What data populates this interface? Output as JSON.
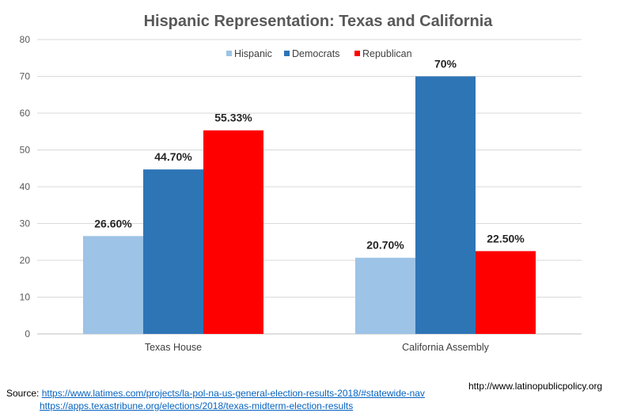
{
  "chart_data": {
    "type": "bar",
    "title": "Hispanic Representation: Texas and California",
    "xlabel": "",
    "ylabel": "",
    "categories": [
      "Texas House",
      "California Assembly"
    ],
    "series": [
      {
        "name": "Hispanic",
        "values": [
          26.6,
          20.7
        ],
        "labels": [
          "26.60%",
          "20.70%"
        ],
        "color": "#9dc3e6"
      },
      {
        "name": "Democrats",
        "values": [
          44.7,
          70
        ],
        "labels": [
          "44.70%",
          "70%"
        ],
        "color": "#2e75b6"
      },
      {
        "name": "Republican",
        "values": [
          55.33,
          22.5
        ],
        "labels": [
          "55.33%",
          "22.50%"
        ],
        "color": "#ff0000"
      }
    ],
    "ylim": [
      0,
      80
    ],
    "yticks": [
      0,
      10,
      20,
      30,
      40,
      50,
      60,
      70,
      80
    ],
    "grid": true,
    "legend_position": "top-right"
  },
  "footer": {
    "source_label": "Source:",
    "source_links": [
      "https://www.latimes.com/projects/la-pol-na-us-general-election-results-2018/#statewide-nav",
      "https://apps.texastribune.org/elections/2018/texas-midterm-election-results"
    ],
    "site": "http://www.latinopublicpolicy.org"
  }
}
